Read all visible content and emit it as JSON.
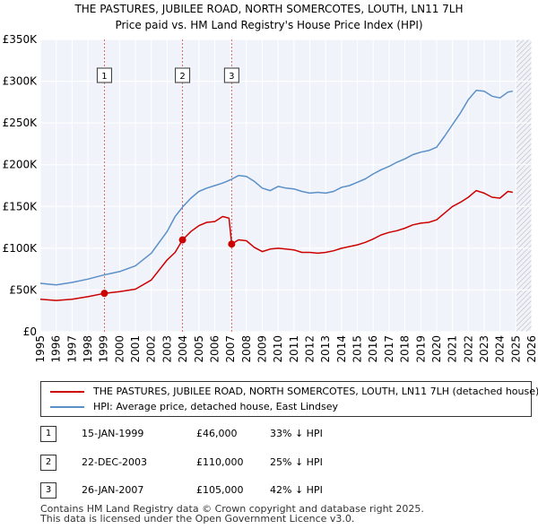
{
  "title": {
    "line1": "THE PASTURES, JUBILEE ROAD, NORTH SOMERCOTES, LOUTH, LN11 7LH",
    "line2": "Price paid vs. HM Land Registry's House Price Index (HPI)"
  },
  "chart_data": {
    "type": "line",
    "title": "THE PASTURES, JUBILEE ROAD, NORTH SOMERCOTES, LOUTH, LN11 7LH — Price paid vs. HM Land Registry's House Price Index (HPI)",
    "xlabel": "",
    "ylabel": "",
    "xlim": [
      1995,
      2026
    ],
    "ylim": [
      0,
      350000
    ],
    "x_ticks": [
      "1995",
      "1996",
      "1997",
      "1998",
      "1999",
      "2000",
      "2001",
      "2002",
      "2003",
      "2004",
      "2005",
      "2006",
      "2007",
      "2008",
      "2009",
      "2010",
      "2011",
      "2012",
      "2013",
      "2014",
      "2015",
      "2016",
      "2017",
      "2018",
      "2019",
      "2020",
      "2021",
      "2022",
      "2023",
      "2024",
      "2025",
      "2026"
    ],
    "y_ticks": [
      {
        "value": 0,
        "label": "£0"
      },
      {
        "value": 50000,
        "label": "£50K"
      },
      {
        "value": 100000,
        "label": "£100K"
      },
      {
        "value": 150000,
        "label": "£150K"
      },
      {
        "value": 200000,
        "label": "£200K"
      },
      {
        "value": 250000,
        "label": "£250K"
      },
      {
        "value": 300000,
        "label": "£300K"
      },
      {
        "value": 350000,
        "label": "£350K"
      }
    ],
    "grid": true,
    "series": [
      {
        "name": "THE PASTURES, JUBILEE ROAD, NORTH SOMERCOTES, LOUTH, LN11 7LH (detached house)",
        "color": "#cc0000",
        "points": [
          [
            1995.0,
            39000
          ],
          [
            1996.0,
            37500
          ],
          [
            1997.0,
            39000
          ],
          [
            1998.0,
            42000
          ],
          [
            1999.04,
            46000
          ],
          [
            2000.0,
            48000
          ],
          [
            2001.0,
            51000
          ],
          [
            2002.0,
            62000
          ],
          [
            2003.0,
            86000
          ],
          [
            2003.5,
            95000
          ],
          [
            2003.97,
            110000
          ],
          [
            2004.5,
            120000
          ],
          [
            2005.0,
            127000
          ],
          [
            2005.5,
            131000
          ],
          [
            2006.0,
            132000
          ],
          [
            2006.5,
            138000
          ],
          [
            2006.9,
            136000
          ],
          [
            2007.07,
            105000
          ],
          [
            2007.5,
            110000
          ],
          [
            2008.0,
            109000
          ],
          [
            2008.5,
            101000
          ],
          [
            2009.0,
            96000
          ],
          [
            2009.5,
            99000
          ],
          [
            2010.0,
            100000
          ],
          [
            2010.5,
            99000
          ],
          [
            2011.0,
            98000
          ],
          [
            2011.5,
            95000
          ],
          [
            2012.0,
            95000
          ],
          [
            2012.5,
            94000
          ],
          [
            2013.0,
            95000
          ],
          [
            2013.5,
            97000
          ],
          [
            2014.0,
            100000
          ],
          [
            2014.5,
            102000
          ],
          [
            2015.0,
            104000
          ],
          [
            2015.5,
            107000
          ],
          [
            2016.0,
            111000
          ],
          [
            2016.5,
            116000
          ],
          [
            2017.0,
            119000
          ],
          [
            2017.5,
            121000
          ],
          [
            2018.0,
            124000
          ],
          [
            2018.5,
            128000
          ],
          [
            2019.0,
            130000
          ],
          [
            2019.5,
            131000
          ],
          [
            2020.0,
            134000
          ],
          [
            2020.5,
            142000
          ],
          [
            2021.0,
            150000
          ],
          [
            2021.5,
            155000
          ],
          [
            2022.0,
            161000
          ],
          [
            2022.5,
            169000
          ],
          [
            2023.0,
            166000
          ],
          [
            2023.5,
            161000
          ],
          [
            2024.0,
            160000
          ],
          [
            2024.5,
            168000
          ],
          [
            2024.8,
            167000
          ]
        ]
      },
      {
        "name": "HPI: Average price, detached house, East Lindsey",
        "color": "#5b8fc7",
        "points": [
          [
            1995.0,
            58000
          ],
          [
            1996.0,
            56000
          ],
          [
            1997.0,
            59000
          ],
          [
            1998.0,
            63000
          ],
          [
            1999.0,
            68000
          ],
          [
            2000.0,
            72000
          ],
          [
            2001.0,
            79000
          ],
          [
            2002.0,
            94000
          ],
          [
            2003.0,
            120000
          ],
          [
            2003.5,
            138000
          ],
          [
            2004.0,
            150000
          ],
          [
            2004.5,
            160000
          ],
          [
            2005.0,
            168000
          ],
          [
            2005.5,
            172000
          ],
          [
            2006.0,
            175000
          ],
          [
            2006.5,
            178000
          ],
          [
            2007.0,
            182000
          ],
          [
            2007.5,
            187000
          ],
          [
            2008.0,
            186000
          ],
          [
            2008.5,
            180000
          ],
          [
            2009.0,
            172000
          ],
          [
            2009.5,
            169000
          ],
          [
            2010.0,
            174000
          ],
          [
            2010.5,
            172000
          ],
          [
            2011.0,
            171000
          ],
          [
            2011.5,
            168000
          ],
          [
            2012.0,
            166000
          ],
          [
            2012.5,
            167000
          ],
          [
            2013.0,
            166000
          ],
          [
            2013.5,
            168000
          ],
          [
            2014.0,
            173000
          ],
          [
            2014.5,
            175000
          ],
          [
            2015.0,
            179000
          ],
          [
            2015.5,
            183000
          ],
          [
            2016.0,
            189000
          ],
          [
            2016.5,
            194000
          ],
          [
            2017.0,
            198000
          ],
          [
            2017.5,
            203000
          ],
          [
            2018.0,
            207000
          ],
          [
            2018.5,
            212000
          ],
          [
            2019.0,
            215000
          ],
          [
            2019.5,
            217000
          ],
          [
            2020.0,
            221000
          ],
          [
            2020.5,
            234000
          ],
          [
            2021.0,
            248000
          ],
          [
            2021.5,
            262000
          ],
          [
            2022.0,
            278000
          ],
          [
            2022.5,
            289000
          ],
          [
            2023.0,
            288000
          ],
          [
            2023.5,
            282000
          ],
          [
            2024.0,
            280000
          ],
          [
            2024.5,
            287000
          ],
          [
            2024.8,
            288000
          ]
        ]
      }
    ],
    "transactions": [
      {
        "id": "1",
        "x": 1999.04,
        "price": 46000
      },
      {
        "id": "2",
        "x": 2003.97,
        "price": 110000
      },
      {
        "id": "3",
        "x": 2007.07,
        "price": 105000
      }
    ],
    "projection_start": 2025.0,
    "legend_position": "below"
  },
  "legend": {
    "items": [
      {
        "label": "THE PASTURES, JUBILEE ROAD, NORTH SOMERCOTES, LOUTH, LN11 7LH (detached house)",
        "color": "#cc0000"
      },
      {
        "label": "HPI: Average price, detached house, East Lindsey",
        "color": "#5b8fc7"
      }
    ]
  },
  "transactions": [
    {
      "id": "1",
      "date": "15-JAN-1999",
      "price": "£46,000",
      "hpi": "33% ↓ HPI"
    },
    {
      "id": "2",
      "date": "22-DEC-2003",
      "price": "£110,000",
      "hpi": "25% ↓ HPI"
    },
    {
      "id": "3",
      "date": "26-JAN-2007",
      "price": "£105,000",
      "hpi": "42% ↓ HPI"
    }
  ],
  "footer": {
    "line1": "Contains HM Land Registry data © Crown copyright and database right 2025.",
    "line2": "This data is licensed under the Open Government Licence v3.0."
  }
}
